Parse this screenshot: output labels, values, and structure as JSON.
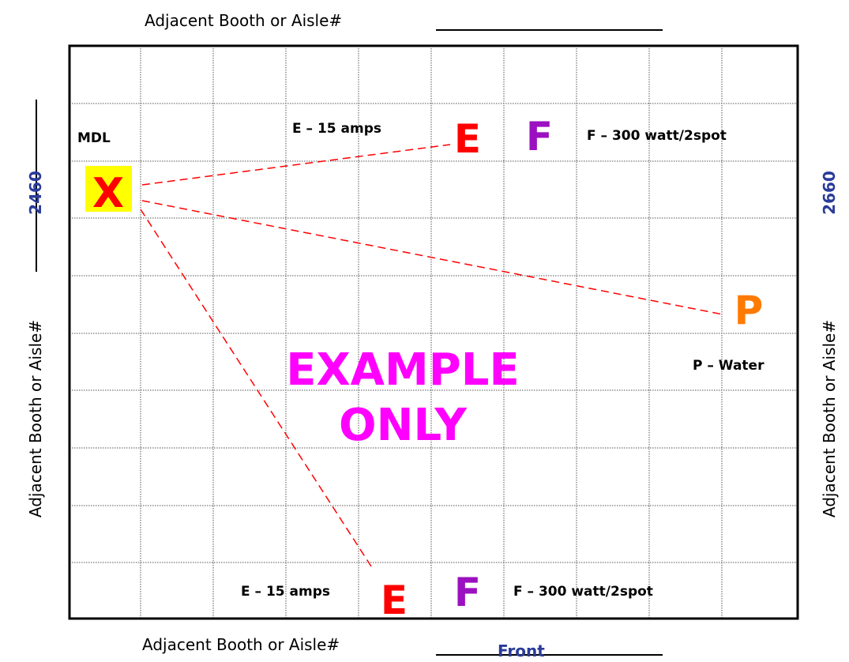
{
  "labels": {
    "top": "Adjacent Booth or Aisle#",
    "bottom": "Adjacent Booth or Aisle#",
    "left": "Adjacent Booth or Aisle#",
    "right": "Adjacent Booth or Aisle#",
    "front": "Front",
    "left_booth": "2460",
    "right_booth": "2660"
  },
  "diagram": {
    "mdl": "MDL",
    "x_marker": "X",
    "e_top": "E",
    "f_top": "F",
    "e_top_desc": "E – 15 amps",
    "f_top_desc": "F – 300 watt/2spot",
    "p_marker": "P",
    "p_desc": "P – Water",
    "e_bottom": "E",
    "f_bottom": "F",
    "e_bottom_desc": "E – 15 amps",
    "f_bottom_desc": "F – 300 watt/2spot",
    "watermark_line1": "EXAMPLE",
    "watermark_line2": "ONLY"
  },
  "colors": {
    "electric": "#ff0000",
    "fan": "#9b10c0",
    "plumbing": "#ff7a00",
    "watermark": "#ff00ff",
    "highlight": "#ffff00",
    "booth_number": "#2a3b9a"
  }
}
